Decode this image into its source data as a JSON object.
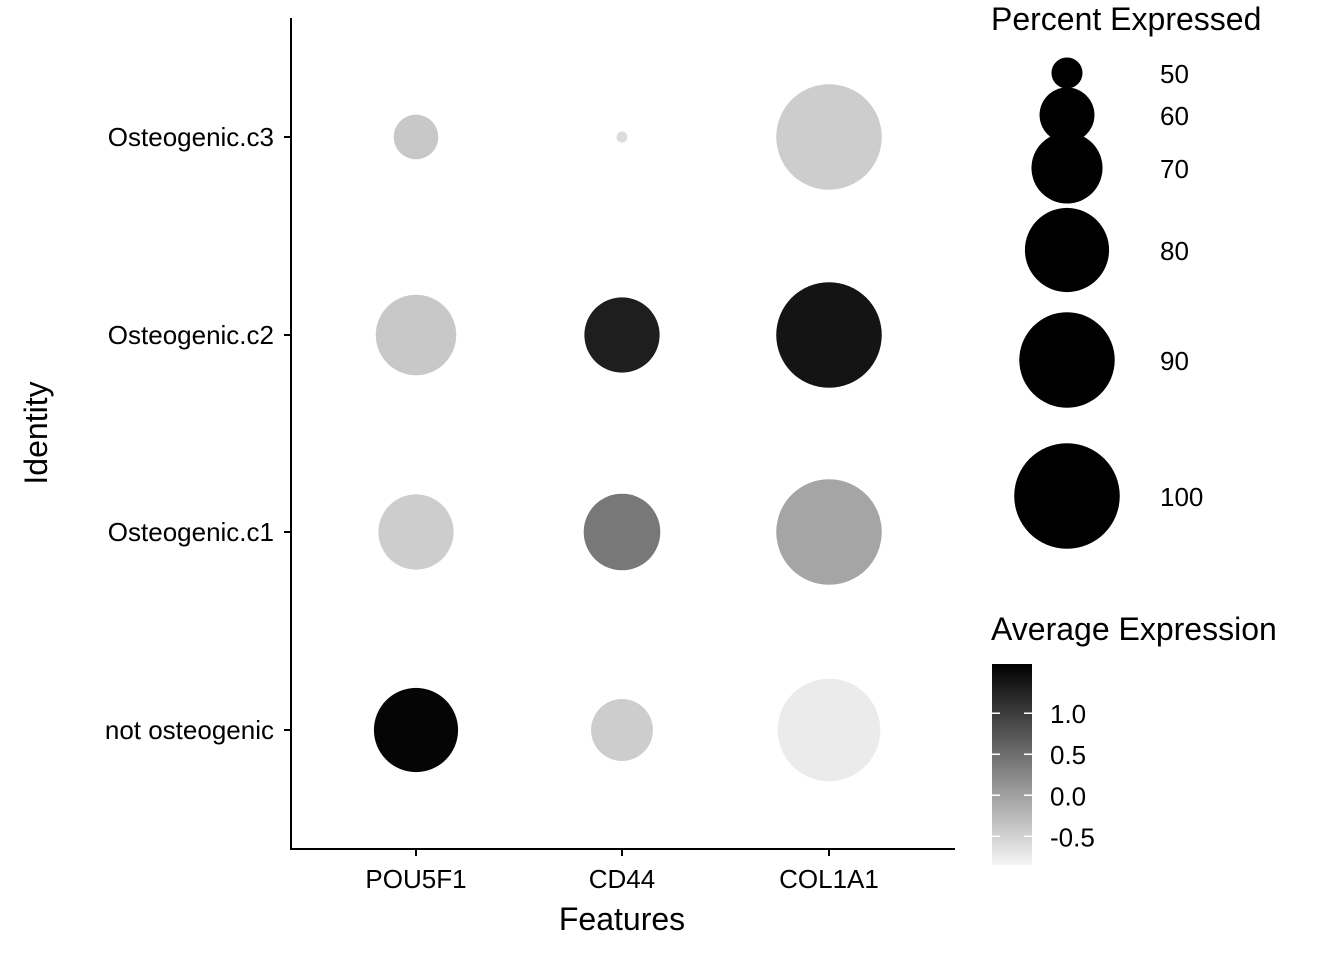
{
  "chart_data": {
    "type": "dot",
    "xlabel": "Features",
    "ylabel": "Identity",
    "features": [
      "POU5F1",
      "CD44",
      "COL1A1"
    ],
    "identities": [
      "not osteogenic",
      "Osteogenic.c1",
      "Osteogenic.c2",
      "Osteogenic.c3"
    ],
    "points": [
      {
        "feature": "POU5F1",
        "identity": "Osteogenic.c3",
        "pct_exp": 55,
        "avg_exp": -0.4
      },
      {
        "feature": "CD44",
        "identity": "Osteogenic.c3",
        "pct_exp": 46,
        "avg_exp": -0.6
      },
      {
        "feature": "COL1A1",
        "identity": "Osteogenic.c3",
        "pct_exp": 100,
        "avg_exp": -0.45
      },
      {
        "feature": "POU5F1",
        "identity": "Osteogenic.c2",
        "pct_exp": 77,
        "avg_exp": -0.4
      },
      {
        "feature": "CD44",
        "identity": "Osteogenic.c2",
        "pct_exp": 73,
        "avg_exp": 1.3
      },
      {
        "feature": "COL1A1",
        "identity": "Osteogenic.c2",
        "pct_exp": 100,
        "avg_exp": 1.4
      },
      {
        "feature": "POU5F1",
        "identity": "Osteogenic.c1",
        "pct_exp": 73,
        "avg_exp": -0.45
      },
      {
        "feature": "CD44",
        "identity": "Osteogenic.c1",
        "pct_exp": 74,
        "avg_exp": 0.4
      },
      {
        "feature": "COL1A1",
        "identity": "Osteogenic.c1",
        "pct_exp": 100,
        "avg_exp": -0.05
      },
      {
        "feature": "POU5F1",
        "identity": "not osteogenic",
        "pct_exp": 80,
        "avg_exp": 1.55
      },
      {
        "feature": "CD44",
        "identity": "not osteogenic",
        "pct_exp": 64,
        "avg_exp": -0.45
      },
      {
        "feature": "COL1A1",
        "identity": "not osteogenic",
        "pct_exp": 97,
        "avg_exp": -0.75
      }
    ],
    "size_legend": {
      "title": "Percent Expressed",
      "breaks": [
        50,
        60,
        70,
        80,
        90,
        100
      ],
      "labels": [
        "50",
        "60",
        "70",
        "80",
        "90",
        "100"
      ]
    },
    "color_legend": {
      "title": "Average Expression",
      "range": [
        -0.85,
        1.6
      ],
      "ticks": [
        1.0,
        0.5,
        0.0,
        -0.5
      ],
      "labels": [
        "1.0",
        "0.5",
        "0.0",
        "-0.5"
      ],
      "low_color": "#f5f5f5",
      "high_color": "#000000"
    },
    "grid": false,
    "legend_position": "right"
  }
}
